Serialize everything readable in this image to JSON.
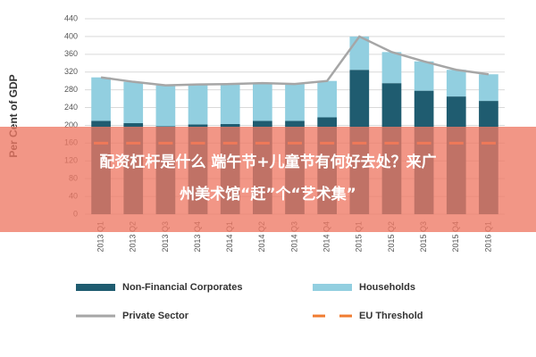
{
  "chart_data": {
    "type": "stacked-bar-line",
    "y_label": "Per Cent of GDP",
    "categories": [
      "2013 Q1",
      "2013 Q2",
      "2013 Q3",
      "2013 Q4",
      "2014 Q1",
      "2014 Q2",
      "2014 Q3",
      "2014 Q4",
      "2015 Q1",
      "2015 Q2",
      "2015 Q3",
      "2015 Q4",
      "2016 Q1"
    ],
    "series": [
      {
        "name": "Non-Financial Corporates",
        "color": "#1f5c70",
        "kind": "bar",
        "values": [
          210,
          205,
          198,
          202,
          203,
          210,
          210,
          218,
          325,
          295,
          278,
          265,
          255
        ]
      },
      {
        "name": "Households",
        "color": "#92cfe0",
        "kind": "bar",
        "values": [
          98,
          93,
          92,
          90,
          90,
          85,
          83,
          82,
          75,
          70,
          66,
          60,
          60
        ]
      },
      {
        "name": "Private Sector",
        "color": "#a6a6a6",
        "kind": "line",
        "values": [
          308,
          298,
          290,
          292,
          293,
          295,
          293,
          300,
          400,
          365,
          344,
          325,
          315
        ]
      },
      {
        "name": "EU Threshold",
        "color": "#f07c30",
        "kind": "dash",
        "values": [
          160,
          160,
          160,
          160,
          160,
          160,
          160,
          160,
          160,
          160,
          160,
          160,
          160
        ]
      }
    ],
    "ylim": [
      0,
      440
    ],
    "yticks": [
      0,
      40,
      80,
      120,
      160,
      200,
      240,
      280,
      320,
      360,
      400,
      440
    ],
    "grid": true
  },
  "overlay": {
    "lines": [
      "配资杠杆是什么 端午节+儿童节有何好去处？来广",
      "州美术馆“赶”个“艺术集”"
    ]
  }
}
